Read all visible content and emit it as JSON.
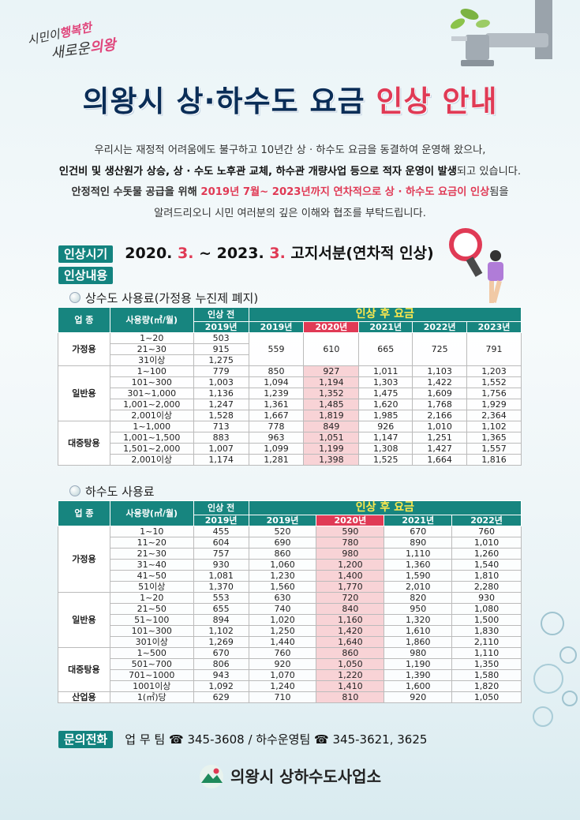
{
  "slogan": {
    "line1_a": "시민이",
    "line1_b": "행복한",
    "line2_a": "새로운",
    "line2_b": "의왕"
  },
  "title": {
    "part1": "의왕시 상·하수도 요금 ",
    "part2": "인상 안내"
  },
  "intro": {
    "line1": "우리시는 재정적 어려움에도 불구하고 10년간 상 · 하수도 요금을 동결하여 운영해 왔으나,",
    "line2_bold": "인건비 및 생산원가 상승, 상 · 수도 노후관 교체, 하수관 개량사업 등으로 적자 운영이 발생",
    "line2_rest": "되고 있습니다.",
    "line3_pre": "안정적인 수돗물 공급을 위해 ",
    "line3_red": "2019년 7월~ 2023년까지 연차적으로 상 · 하수도 요금이 인상",
    "line3_post": "됨을",
    "line4": "알려드리오니 시민 여러분의 깊은 이해와 협조를 부탁드립니다."
  },
  "period": {
    "label": "인상시기",
    "a": "2020. ",
    "a_red": "3.",
    "mid": " ~ 2023. ",
    "b_red": "3.",
    "tail": " 고지서분(연차적 인상)"
  },
  "content_label": "인상내용",
  "water": {
    "section_title": "상수도 사용료(가정용 누진제 폐지)",
    "head": {
      "type": "업 종",
      "usage": "사용량(㎥/월)",
      "before": "인상 전",
      "after": "인상 후 요금",
      "before_year": "2019년",
      "years": [
        "2019년",
        "2020년",
        "2021년",
        "2022년",
        "2023년"
      ]
    },
    "home": {
      "cat": "가정용",
      "ranges": [
        "1~20",
        "21~30",
        "31이상"
      ],
      "before": [
        "503",
        "915",
        "1,275"
      ],
      "after": [
        "559",
        "610",
        "665",
        "725",
        "791"
      ]
    },
    "general": {
      "cat": "일반용",
      "rows": [
        {
          "r": "1~100",
          "b": "779",
          "v": [
            "850",
            "927",
            "1,011",
            "1,103",
            "1,203"
          ]
        },
        {
          "r": "101~300",
          "b": "1,003",
          "v": [
            "1,094",
            "1,194",
            "1,303",
            "1,422",
            "1,552"
          ]
        },
        {
          "r": "301~1,000",
          "b": "1,136",
          "v": [
            "1,239",
            "1,352",
            "1,475",
            "1,609",
            "1,756"
          ]
        },
        {
          "r": "1,001~2,000",
          "b": "1,247",
          "v": [
            "1,361",
            "1,485",
            "1,620",
            "1,768",
            "1,929"
          ]
        },
        {
          "r": "2,001이상",
          "b": "1,528",
          "v": [
            "1,667",
            "1,819",
            "1,985",
            "2,166",
            "2,364"
          ]
        }
      ]
    },
    "bath": {
      "cat": "대중탕용",
      "rows": [
        {
          "r": "1~1,000",
          "b": "713",
          "v": [
            "778",
            "849",
            "926",
            "1,010",
            "1,102"
          ]
        },
        {
          "r": "1,001~1,500",
          "b": "883",
          "v": [
            "963",
            "1,051",
            "1,147",
            "1,251",
            "1,365"
          ]
        },
        {
          "r": "1,501~2,000",
          "b": "1,007",
          "v": [
            "1,099",
            "1,199",
            "1,308",
            "1,427",
            "1,557"
          ]
        },
        {
          "r": "2,001이상",
          "b": "1,174",
          "v": [
            "1,281",
            "1,398",
            "1,525",
            "1,664",
            "1,816"
          ]
        }
      ]
    }
  },
  "sewer": {
    "section_title": "하수도 사용료",
    "head": {
      "type": "업 종",
      "usage": "사용량(㎥/월)",
      "before": "인상 전",
      "after": "인상 후 요금",
      "before_year": "2019년",
      "years": [
        "2019년",
        "2020년",
        "2021년",
        "2022년"
      ]
    },
    "groups": [
      {
        "cat": "가정용",
        "rows": [
          {
            "r": "1~10",
            "b": "455",
            "v": [
              "520",
              "590",
              "670",
              "760"
            ]
          },
          {
            "r": "11~20",
            "b": "604",
            "v": [
              "690",
              "780",
              "890",
              "1,010"
            ]
          },
          {
            "r": "21~30",
            "b": "757",
            "v": [
              "860",
              "980",
              "1,110",
              "1,260"
            ]
          },
          {
            "r": "31~40",
            "b": "930",
            "v": [
              "1,060",
              "1,200",
              "1,360",
              "1,540"
            ]
          },
          {
            "r": "41~50",
            "b": "1,081",
            "v": [
              "1,230",
              "1,400",
              "1,590",
              "1,810"
            ]
          },
          {
            "r": "51이상",
            "b": "1,370",
            "v": [
              "1,560",
              "1,770",
              "2,010",
              "2,280"
            ]
          }
        ]
      },
      {
        "cat": "일반용",
        "rows": [
          {
            "r": "1~20",
            "b": "553",
            "v": [
              "630",
              "720",
              "820",
              "930"
            ]
          },
          {
            "r": "21~50",
            "b": "655",
            "v": [
              "740",
              "840",
              "950",
              "1,080"
            ]
          },
          {
            "r": "51~100",
            "b": "894",
            "v": [
              "1,020",
              "1,160",
              "1,320",
              "1,500"
            ]
          },
          {
            "r": "101~300",
            "b": "1,102",
            "v": [
              "1,250",
              "1,420",
              "1,610",
              "1,830"
            ]
          },
          {
            "r": "301이상",
            "b": "1,269",
            "v": [
              "1,440",
              "1,640",
              "1,860",
              "2,110"
            ]
          }
        ]
      },
      {
        "cat": "대중탕용",
        "rows": [
          {
            "r": "1~500",
            "b": "670",
            "v": [
              "760",
              "860",
              "980",
              "1,110"
            ]
          },
          {
            "r": "501~700",
            "b": "806",
            "v": [
              "920",
              "1,050",
              "1,190",
              "1,350"
            ]
          },
          {
            "r": "701~1000",
            "b": "943",
            "v": [
              "1,070",
              "1,220",
              "1,390",
              "1,580"
            ]
          },
          {
            "r": "1001이상",
            "b": "1,092",
            "v": [
              "1,240",
              "1,410",
              "1,600",
              "1,820"
            ]
          }
        ]
      },
      {
        "cat": "산업용",
        "rows": [
          {
            "r": "1(㎥)당",
            "b": "629",
            "v": [
              "710",
              "810",
              "920",
              "1,050"
            ]
          }
        ]
      }
    ]
  },
  "contact": {
    "label": "문의전화",
    "text": "업  무  팀 ☎ 345-3608 / 하수운영팀 ☎ 345-3621, 3625"
  },
  "footer": {
    "org": "의왕시 상하수도사업소"
  }
}
